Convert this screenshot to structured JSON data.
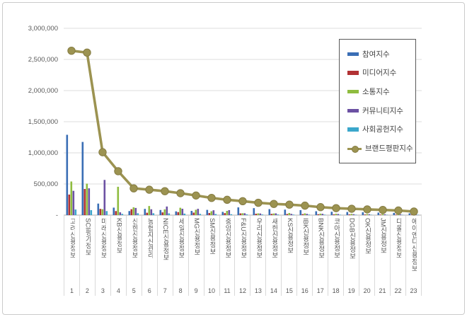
{
  "window": {
    "background": "#ffffff",
    "frame_border_color": "#cbcbcb"
  },
  "chart_data": {
    "type": "bar",
    "subtype": "grouped-bars-with-line-overlay",
    "title": "",
    "categories": [
      "고려신용정보",
      "SCI평가정보",
      "미래신용정보",
      "KB신용정보",
      "신한신용정보",
      "농협자산관리",
      "NICE신용정보",
      "세일신용정보",
      "MG신용정보",
      "SM신용정보",
      "중앙신용정보",
      "F&U신용정보",
      "우리신용정보",
      "새한신용정보",
      "KS신용정보",
      "IBK신용정보",
      "BNK신용정보",
      "코아신용정보",
      "DGB신용정보",
      "OK신용정보",
      "JM신용정보",
      "다올신용정보",
      "에이엔디신용정보"
    ],
    "ranks": [
      "1",
      "2",
      "3",
      "4",
      "5",
      "6",
      "7",
      "8",
      "9",
      "10",
      "11",
      "12",
      "13",
      "14",
      "15",
      "16",
      "17",
      "18",
      "19",
      "20",
      "21",
      "22",
      "23"
    ],
    "y_axis": {
      "min": 0,
      "max": 3000000,
      "gridline_step": 500000,
      "ticks": [
        {
          "label": "3,000,000",
          "value": 3000000
        },
        {
          "label": "2,500,000",
          "value": 2500000
        },
        {
          "label": "2,000,000",
          "value": 2000000
        },
        {
          "label": "1,500,000",
          "value": 1500000
        },
        {
          "label": "1,000,000",
          "value": 1000000
        },
        {
          "label": "500,000",
          "value": 500000
        },
        {
          "label": "-",
          "value": 0
        }
      ]
    },
    "series": [
      {
        "name": "참여지수",
        "type": "bar",
        "color": "#3A6EB5",
        "values": [
          1290000,
          1175000,
          185000,
          120000,
          65000,
          100000,
          82000,
          60000,
          68000,
          84000,
          52000,
          124000,
          112000,
          96000,
          88000,
          80000,
          62000,
          54000,
          50000,
          46000,
          40000,
          36000,
          28000
        ]
      },
      {
        "name": "미디어지수",
        "type": "bar",
        "color": "#B23234",
        "values": [
          330000,
          420000,
          100000,
          65000,
          95000,
          38000,
          44000,
          48000,
          40000,
          34000,
          32000,
          28000,
          22000,
          20000,
          18000,
          16000,
          14000,
          12000,
          11000,
          10000,
          9000,
          8000,
          6000
        ]
      },
      {
        "name": "소통지수",
        "type": "bar",
        "color": "#8FBC3F",
        "values": [
          540000,
          505000,
          95000,
          455000,
          125000,
          146000,
          92000,
          118000,
          86000,
          62000,
          68000,
          30000,
          28000,
          26000,
          34000,
          28000,
          24000,
          22000,
          20000,
          17000,
          16000,
          14000,
          11000
        ]
      },
      {
        "name": "커뮤니티지수",
        "type": "bar",
        "color": "#6C51A3",
        "values": [
          390000,
          430000,
          565000,
          45000,
          115000,
          94000,
          138000,
          102000,
          101000,
          78000,
          80000,
          30000,
          26000,
          28000,
          20000,
          20000,
          21000,
          18000,
          15000,
          14000,
          13000,
          12000,
          9000
        ]
      },
      {
        "name": "사회공헌지수",
        "type": "bar",
        "color": "#3BA7CB",
        "values": [
          90000,
          80000,
          65000,
          20000,
          30000,
          30000,
          28000,
          24000,
          20000,
          18000,
          14000,
          12000,
          10000,
          10000,
          8000,
          8000,
          7000,
          6000,
          6000,
          5000,
          5000,
          4000,
          4000
        ]
      },
      {
        "name": "브랜드평판지수",
        "type": "line",
        "color": "#9C9351",
        "marker_edge": "#857C43",
        "values": [
          2640000,
          2610000,
          1010000,
          705000,
          430000,
          408000,
          384000,
          352000,
          315000,
          276000,
          246000,
          224000,
          198000,
          180000,
          168000,
          152000,
          128000,
          112000,
          102000,
          92000,
          83000,
          74000,
          58000
        ]
      }
    ],
    "legend": {
      "position": "top-right",
      "border_color": "#595959",
      "background": "#ffffff"
    },
    "grid": true,
    "gridline_color": "#dcdcdc",
    "axis_color": "#bfbfbf",
    "tick_label_color": "#595959"
  }
}
